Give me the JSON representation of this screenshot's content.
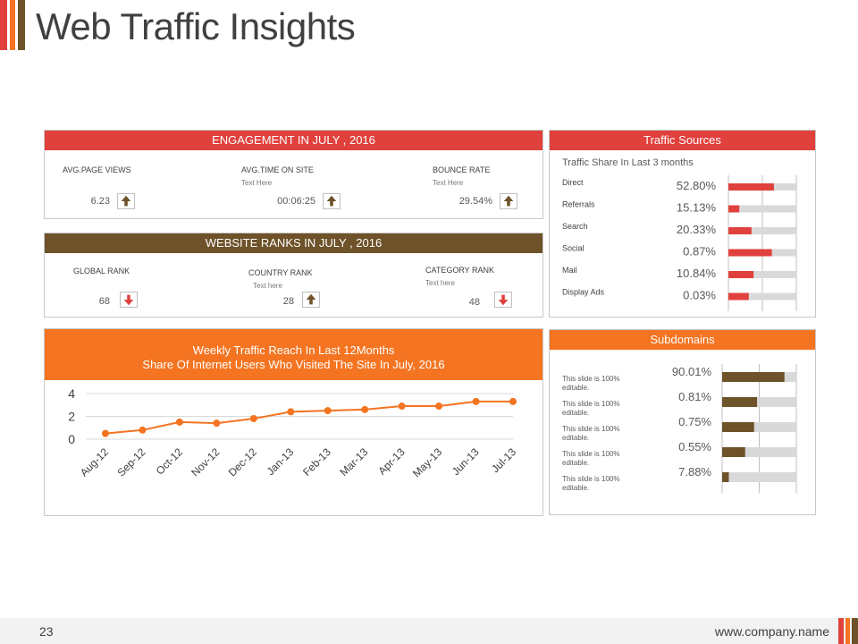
{
  "slide": {
    "title": "Web Traffic Insights",
    "page_number": "23",
    "company_url": "www.company.name"
  },
  "colors": {
    "red": "#e0413d",
    "brown": "#6e5229",
    "orange": "#f47421",
    "gray_track": "#d9d9d9"
  },
  "engagement": {
    "header": "ENGAGEMENT IN JULY , 2016",
    "metrics": [
      {
        "label": "AVG.PAGE VIEWS",
        "sub": "",
        "value": "6.23",
        "trend": "up-arrow-icon"
      },
      {
        "label": "AVG.TIME ON SITE",
        "sub": "Text Here",
        "value": "00:06:25",
        "trend": "up-arrow-icon"
      },
      {
        "label": "BOUNCE RATE",
        "sub": "Text Here",
        "value": "29.54%",
        "trend": "up-arrow-icon"
      }
    ]
  },
  "ranks": {
    "header": "WEBSITE RANKS IN JULY , 2016",
    "metrics": [
      {
        "label": "GLOBAL RANK",
        "sub": "",
        "value": "68",
        "trend": "down-arrow-icon"
      },
      {
        "label": "COUNTRY RANK",
        "sub": "Text here",
        "value": "28",
        "trend": "up-arrow-icon"
      },
      {
        "label": "CATEGORY RANK",
        "sub": "Text here",
        "value": "48",
        "trend": "down-arrow-icon"
      }
    ]
  },
  "reach": {
    "header_line1": "Weekly Traffic Reach In Last 12Months",
    "header_line2": "Share Of Internet Users Who Visited The Site In July, 2016"
  },
  "traffic_sources": {
    "header": "Traffic Sources",
    "subtitle": "Traffic Share In Last 3 months"
  },
  "subdomains": {
    "header": "Subdomains"
  },
  "chart_data": [
    {
      "type": "line",
      "x": [
        "Aug-12",
        "Sep-12",
        "Oct-12",
        "Nov-12",
        "Dec-12",
        "Jan-13",
        "Feb-13",
        "Mar-13",
        "Apr-13",
        "May-13",
        "Jun-13",
        "Jul-13"
      ],
      "series": [
        {
          "values": [
            0.5,
            0.8,
            1.5,
            1.4,
            1.8,
            2.4,
            2.5,
            2.6,
            2.9,
            2.9,
            3.3,
            3.3
          ]
        }
      ],
      "y_ticks": [
        "0",
        "2",
        "4"
      ],
      "ylim": [
        0,
        4
      ],
      "grid": true
    },
    {
      "type": "bar",
      "orientation": "horizontal",
      "categories": [
        "Direct",
        "Referrals",
        "Search",
        "Social",
        "Mail",
        "Display Ads"
      ],
      "value_labels": [
        "52.80%",
        "15.13%",
        "20.33%",
        "0.87%",
        "10.84%",
        "0.03%"
      ],
      "fill": [
        0.67,
        0.16,
        0.34,
        0.64,
        0.37,
        0.3
      ],
      "color": "#e0413d"
    },
    {
      "type": "bar",
      "orientation": "horizontal",
      "categories": [
        "This slide is 100% editable.",
        "This slide is 100% editable.",
        "This slide is 100% editable.",
        "This slide is 100% editable.",
        "This slide is 100% editable."
      ],
      "value_labels": [
        "90.01%",
        "0.81%",
        "0.75%",
        "0.55%",
        "7.88%"
      ],
      "fill": [
        0.84,
        0.47,
        0.43,
        0.31,
        0.09
      ],
      "color": "#6e5229"
    }
  ]
}
